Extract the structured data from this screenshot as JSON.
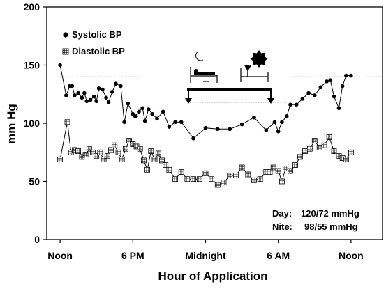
{
  "chart_data": {
    "type": "line",
    "title": "",
    "xlabel": "Hour of Application",
    "ylabel": "mm Hg",
    "x_tick_labels": [
      "Noon",
      "6 PM",
      "Midnight",
      "6 AM",
      "Noon"
    ],
    "x_tick_hours": [
      0,
      6,
      12,
      18,
      24
    ],
    "xlim": [
      -1.1,
      26.6
    ],
    "ylim": [
      0,
      200
    ],
    "y_ticks": [
      0,
      50,
      100,
      150,
      200
    ],
    "grid": false,
    "legend_position": "top-left",
    "series": [
      {
        "name": "Systolic BP",
        "marker": "filled-circle",
        "color": "#000000",
        "x": [
          0.0,
          0.5,
          0.8,
          1.0,
          1.2,
          1.5,
          1.8,
          2.0,
          2.2,
          2.5,
          2.8,
          3.0,
          3.2,
          3.5,
          3.8,
          4.0,
          4.3,
          4.6,
          5.0,
          5.3,
          5.6,
          6.0,
          6.2,
          6.5,
          6.8,
          7.0,
          7.3,
          7.6,
          8.0,
          8.5,
          9.0,
          9.5,
          10.0,
          11.0,
          12.0,
          13.0,
          14.0,
          15.0,
          16.0,
          17.0,
          17.7,
          18.0,
          18.3,
          18.7,
          19.0,
          19.5,
          20.0,
          20.5,
          21.0,
          21.5,
          22.0,
          22.3,
          22.6,
          23.0,
          23.3,
          23.6,
          24.0
        ],
        "y": [
          150,
          124,
          132,
          132,
          124,
          126,
          122,
          126,
          119,
          120,
          123,
          119,
          130,
          129,
          122,
          118,
          127,
          134,
          132,
          101,
          117,
          108,
          106,
          110,
          113,
          102,
          112,
          108,
          104,
          110,
          97,
          101,
          101,
          87,
          96,
          95,
          95,
          99,
          105,
          94,
          101,
          93,
          101,
          106,
          116,
          116,
          121,
          126,
          124,
          131,
          136,
          137,
          123,
          113,
          132,
          141,
          141
        ]
      },
      {
        "name": "Diastolic BP",
        "marker": "hatched-square",
        "color": "#000000",
        "x": [
          0.0,
          0.6,
          0.9,
          1.2,
          1.5,
          1.8,
          2.1,
          2.4,
          2.7,
          3.0,
          3.3,
          3.6,
          3.9,
          4.2,
          4.5,
          4.8,
          5.1,
          5.4,
          5.7,
          6.0,
          6.3,
          6.6,
          6.9,
          7.2,
          7.5,
          7.8,
          8.1,
          8.4,
          8.7,
          9.0,
          9.5,
          10.0,
          10.5,
          11.0,
          11.5,
          12.0,
          12.5,
          13.0,
          13.5,
          14.0,
          14.5,
          15.0,
          15.5,
          16.0,
          16.5,
          17.0,
          17.3,
          17.6,
          18.0,
          18.3,
          18.6,
          19.0,
          19.4,
          19.8,
          20.2,
          20.6,
          21.0,
          21.4,
          21.8,
          22.2,
          22.6,
          23.0,
          23.3,
          23.6,
          24.0
        ],
        "y": [
          69,
          101,
          75,
          77,
          76,
          71,
          73,
          78,
          75,
          72,
          75,
          69,
          72,
          77,
          81,
          75,
          69,
          78,
          85,
          82,
          80,
          78,
          68,
          60,
          76,
          69,
          74,
          68,
          64,
          60,
          52,
          58,
          52,
          52,
          52,
          57,
          52,
          47,
          49,
          55,
          55,
          62,
          56,
          51,
          52,
          58,
          58,
          62,
          59,
          50,
          61,
          59,
          64,
          71,
          76,
          78,
          85,
          79,
          81,
          88,
          76,
          72,
          70,
          69,
          75
        ]
      }
    ],
    "reference_lines": [
      {
        "y": 140,
        "x_ranges": [
          [
            0,
            6.6
          ],
          [
            19.2,
            26.6
          ]
        ],
        "style": "dotted"
      },
      {
        "y": 118,
        "x_ranges": [
          [
            10.5,
            18.8
          ]
        ],
        "style": "dotted"
      }
    ],
    "annotations": {
      "day_label": "Day:",
      "day_values": "120/72 mmHg",
      "nite_label": "Nite:",
      "nite_values": "98/55 mmHg"
    }
  }
}
